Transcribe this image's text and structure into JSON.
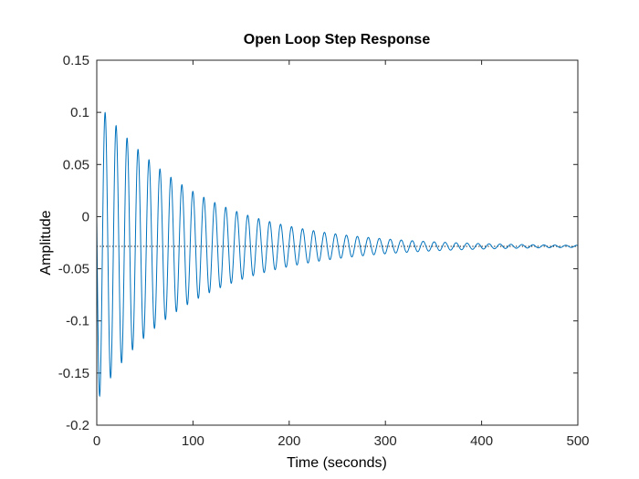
{
  "chart_data": {
    "type": "line",
    "title": "Open Loop Step Response",
    "xlabel": "Time (seconds)",
    "ylabel": "Amplitude",
    "xlim": [
      0,
      500
    ],
    "ylim": [
      -0.2,
      0.15
    ],
    "xticks": [
      0,
      100,
      200,
      300,
      400,
      500
    ],
    "xtick_labels": [
      "0",
      "100",
      "200",
      "300",
      "400",
      "500"
    ],
    "yticks": [
      -0.2,
      -0.15,
      -0.1,
      -0.05,
      0,
      0.05,
      0.1,
      0.15
    ],
    "ytick_labels": [
      "-0.2",
      "-0.15",
      "-0.1",
      "-0.05",
      "0",
      "0.05",
      "0.1",
      "0.15"
    ],
    "grid": false,
    "series": [
      {
        "style": "solid",
        "color": "#0072BD",
        "steady_state": -0.0285,
        "oscillation_period": 11.4,
        "decay_time_constant": 100,
        "first_peak": {
          "x": 9,
          "y": 0.106
        },
        "first_trough": {
          "x": 3,
          "y": -0.172
        },
        "x_end": 500
      },
      {
        "style": "dotted",
        "color": "#000000",
        "x": [
          0,
          500
        ],
        "y": [
          -0.0285,
          -0.0285
        ]
      }
    ]
  }
}
